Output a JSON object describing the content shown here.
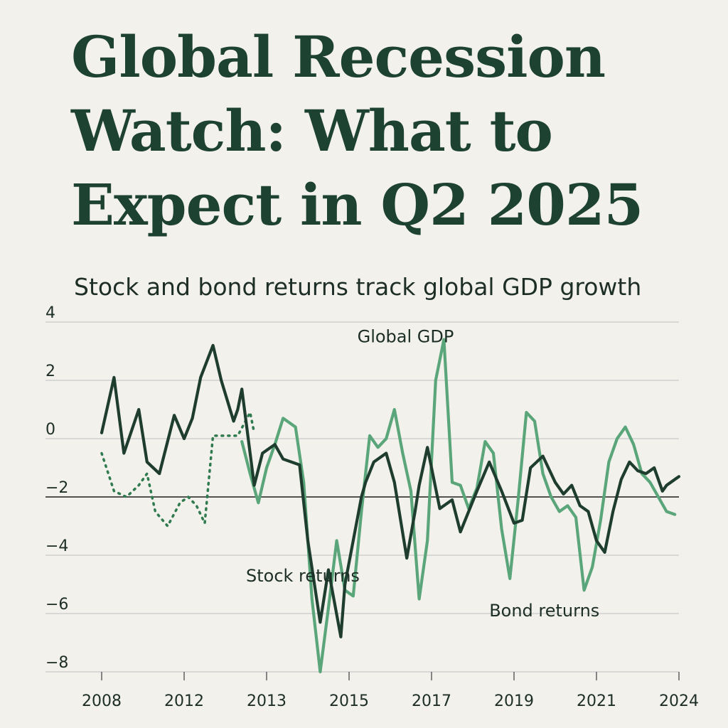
{
  "headline": "Global Recession Watch: What to Expect in Q2 2025",
  "colors": {
    "background": "#f3f1ec",
    "headline": "#1d4232",
    "gdp_line": "#1e3d2f",
    "stock_line": "#2f7a4f",
    "bond_line": "#5aa67a",
    "grid": "#cfcfcf",
    "zero_line": "#222222"
  },
  "chart_data": {
    "type": "line",
    "title": "Stock and bond returns track global GDP growth",
    "xlabel": "",
    "ylabel": "",
    "ylim": [
      -8,
      4
    ],
    "yticks": [
      4,
      2,
      0,
      -2,
      -4,
      -6,
      -8
    ],
    "ytick_labels": [
      "4",
      "2",
      "0",
      "−2",
      "−4",
      "−6",
      "−8"
    ],
    "xticks": [
      {
        "x": 0,
        "label": "2008"
      },
      {
        "x": 10,
        "label": "2012"
      },
      {
        "x": 20,
        "label": "2013"
      },
      {
        "x": 30,
        "label": "2015"
      },
      {
        "x": 40,
        "label": "2017"
      },
      {
        "x": 50,
        "label": "2019"
      },
      {
        "x": 60,
        "label": "2021"
      },
      {
        "x": 70,
        "label": "2024"
      }
    ],
    "reference_line": -2,
    "series": [
      {
        "name": "Global GDP",
        "style": "solid",
        "color": "#1e3d2f",
        "x": [
          0,
          1.5,
          2.7,
          4.5,
          5.5,
          7,
          8.8,
          10,
          11,
          12,
          13.5,
          14.5,
          16,
          16.5,
          17,
          18.5,
          19.5,
          21,
          22,
          24,
          25,
          26.5,
          27.5,
          29,
          29.5,
          30.5,
          31.5,
          32,
          33,
          34.5,
          35.5,
          37,
          38,
          38.5,
          39.5,
          41,
          42.5,
          43.5,
          44.5,
          45.5,
          47,
          48.5,
          50,
          51,
          52,
          53.5,
          55,
          56,
          57,
          58,
          59,
          60,
          61,
          62,
          63,
          64,
          65,
          66,
          67,
          68,
          68.5,
          69.5,
          70
        ],
        "y": [
          0.2,
          2.1,
          -0.5,
          1,
          -0.8,
          -1.2,
          0.8,
          0,
          0.7,
          2.1,
          3.2,
          2,
          0.6,
          1,
          1.7,
          -1.6,
          -0.5,
          -0.2,
          -0.7,
          -0.9,
          -3.5,
          -6.3,
          -4.5,
          -6.8,
          -5,
          -3.5,
          -2,
          -1.5,
          -0.8,
          -0.5,
          -1.5,
          -4.1,
          -2.5,
          -1.6,
          -0.3,
          -2.4,
          -2.1,
          -3.2,
          -2.5,
          -1.8,
          -0.8,
          -1.8,
          -2.9,
          -2.8,
          -1,
          -0.6,
          -1.5,
          -1.9,
          -1.6,
          -2.3,
          -2.5,
          -3.5,
          -3.9,
          -2.5,
          -1.4,
          -0.8,
          -1.1,
          -1.2,
          -1,
          -1.8,
          -1.6,
          -1.4,
          -1.3
        ]
      },
      {
        "name": "Stock returns",
        "style": "dotted",
        "color": "#2f7a4f",
        "x": [
          0,
          1.5,
          3,
          4.5,
          5.5,
          6.5,
          8,
          9.5,
          10.5,
          11.5,
          12.5,
          13.5,
          15,
          16.5,
          18,
          18.5
        ],
        "y": [
          -0.5,
          -1.8,
          -2,
          -1.6,
          -1.2,
          -2.5,
          -3,
          -2.2,
          -2,
          -2.3,
          -2.9,
          0.1,
          0.1,
          0.1,
          0.9,
          0.2
        ]
      },
      {
        "name": "Bond returns",
        "style": "solid",
        "color": "#5aa67a",
        "x": [
          17,
          18,
          19,
          20,
          21,
          22,
          23.5,
          24.5,
          25.5,
          26.5,
          27.5,
          28.5,
          29.5,
          30.5,
          31.5,
          32.5,
          33.5,
          34.5,
          35.5,
          36.5,
          37.5,
          38.5,
          39.5,
          40.5,
          41.5,
          42.5,
          43.5,
          44.5,
          45.5,
          46.5,
          47.5,
          48.5,
          49.5,
          50.5,
          51.5,
          52.5,
          53.5,
          54.5,
          55.5,
          56.5,
          57.5,
          58.5,
          59.5,
          60.5,
          61.5,
          62.5,
          63.5,
          64.5,
          65.5,
          66.5,
          67.5,
          68.5,
          69.5
        ],
        "y": [
          -0.1,
          -1.2,
          -2.2,
          -1,
          -0.2,
          0.7,
          0.4,
          -1.5,
          -5.5,
          -8,
          -5.8,
          -3.5,
          -5.2,
          -5.4,
          -2.5,
          0.1,
          -0.3,
          0,
          1,
          -0.5,
          -1.8,
          -5.5,
          -3.5,
          2,
          3.4,
          -1.5,
          -1.6,
          -2.4,
          -1.7,
          -0.1,
          -0.5,
          -3.1,
          -4.8,
          -2.1,
          0.9,
          0.6,
          -1.2,
          -2,
          -2.5,
          -2.3,
          -2.7,
          -5.2,
          -4.4,
          -2.8,
          -0.8,
          0,
          0.4,
          -0.2,
          -1.2,
          -1.5,
          -2,
          -2.5,
          -2.6
        ]
      }
    ],
    "annotations": [
      {
        "text": "Global GDP",
        "x": 31,
        "y": 3.3
      },
      {
        "text": "Stock returns",
        "x": 17.5,
        "y": -4.9
      },
      {
        "text": "Bond returns",
        "x": 47,
        "y": -6.1
      }
    ]
  }
}
